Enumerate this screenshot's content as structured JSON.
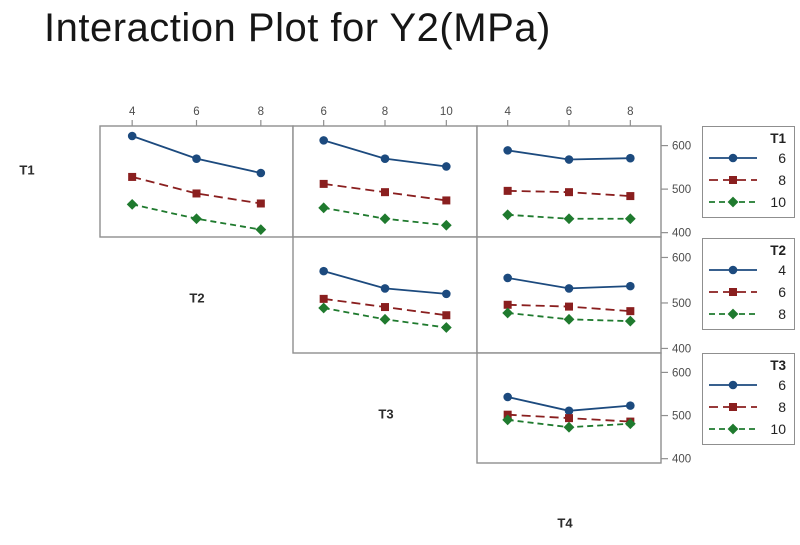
{
  "title": "Interaction Plot for Y2(MPa)",
  "factor_labels": {
    "t1": "T1",
    "t2": "T2",
    "t3": "T3",
    "t4": "T4"
  },
  "colors": {
    "series_blue": "#1c4a7e",
    "series_red": "#8a1f1f",
    "series_green": "#1f7a2e",
    "panel_border": "#8f8f8f",
    "axis_text": "#4d4d4d",
    "title_text": "#161616"
  },
  "chart_data": {
    "type": "line",
    "title": "Interaction Plot for Y2(MPa)",
    "layout": "upper-triangle interaction matrix, 3 rows x 3 cols, legends right, x ticks top, y ticks right",
    "ylim": [
      390,
      645
    ],
    "yticks": [
      600,
      500,
      400
    ],
    "grid": false,
    "series_styles": [
      {
        "key": "blue",
        "color": "#1c4a7e",
        "dash": "",
        "marker": "circle"
      },
      {
        "key": "red",
        "color": "#8a1f1f",
        "dash": "9 5",
        "marker": "square"
      },
      {
        "key": "green",
        "color": "#1f7a2e",
        "dash": "6 4",
        "marker": "diamond"
      }
    ],
    "panels": [
      {
        "id": "T1xT2",
        "row_factor": "T1",
        "col_factor": "T2",
        "x_ticks": [
          4,
          6,
          8
        ],
        "series": [
          {
            "level": "6",
            "values": [
              622,
              570,
              537
            ]
          },
          {
            "level": "8",
            "values": [
              528,
              490,
              467
            ]
          },
          {
            "level": "10",
            "values": [
              465,
              432,
              407
            ]
          }
        ]
      },
      {
        "id": "T1xT3",
        "row_factor": "T1",
        "col_factor": "T3",
        "x_ticks": [
          6,
          8,
          10
        ],
        "series": [
          {
            "level": "6",
            "values": [
              612,
              570,
              552
            ]
          },
          {
            "level": "8",
            "values": [
              512,
              493,
              474
            ]
          },
          {
            "level": "10",
            "values": [
              457,
              432,
              417
            ]
          }
        ]
      },
      {
        "id": "T1xT4",
        "row_factor": "T1",
        "col_factor": "T4",
        "x_ticks": [
          4,
          6,
          8
        ],
        "series": [
          {
            "level": "6",
            "values": [
              589,
              568,
              571
            ]
          },
          {
            "level": "8",
            "values": [
              496,
              493,
              484
            ]
          },
          {
            "level": "10",
            "values": [
              441,
              432,
              432
            ]
          }
        ]
      },
      {
        "id": "T2xT3",
        "row_factor": "T2",
        "col_factor": "T3",
        "x_ticks": [
          6,
          8,
          10
        ],
        "series": [
          {
            "level": "4",
            "values": [
              570,
              532,
              520
            ]
          },
          {
            "level": "6",
            "values": [
              509,
              491,
              473
            ]
          },
          {
            "level": "8",
            "values": [
              489,
              464,
              446
            ]
          }
        ]
      },
      {
        "id": "T2xT4",
        "row_factor": "T2",
        "col_factor": "T4",
        "x_ticks": [
          4,
          6,
          8
        ],
        "series": [
          {
            "level": "4",
            "values": [
              555,
              532,
              537
            ]
          },
          {
            "level": "6",
            "values": [
              496,
              492,
              482
            ]
          },
          {
            "level": "8",
            "values": [
              478,
              464,
              460
            ]
          }
        ]
      },
      {
        "id": "T3xT4",
        "row_factor": "T3",
        "col_factor": "T4",
        "x_ticks": [
          4,
          6,
          8
        ],
        "series": [
          {
            "level": "6",
            "values": [
              543,
              511,
              523
            ]
          },
          {
            "level": "8",
            "values": [
              502,
              494,
              486
            ]
          },
          {
            "level": "10",
            "values": [
              490,
              473,
              481
            ]
          }
        ]
      }
    ],
    "legends": [
      {
        "title": "T1",
        "items": [
          {
            "level": "6",
            "style": "blue"
          },
          {
            "level": "8",
            "style": "red"
          },
          {
            "level": "10",
            "style": "green"
          }
        ]
      },
      {
        "title": "T2",
        "items": [
          {
            "level": "4",
            "style": "blue"
          },
          {
            "level": "6",
            "style": "red"
          },
          {
            "level": "8",
            "style": "green"
          }
        ]
      },
      {
        "title": "T3",
        "items": [
          {
            "level": "6",
            "style": "blue"
          },
          {
            "level": "8",
            "style": "red"
          },
          {
            "level": "10",
            "style": "green"
          }
        ]
      }
    ]
  }
}
